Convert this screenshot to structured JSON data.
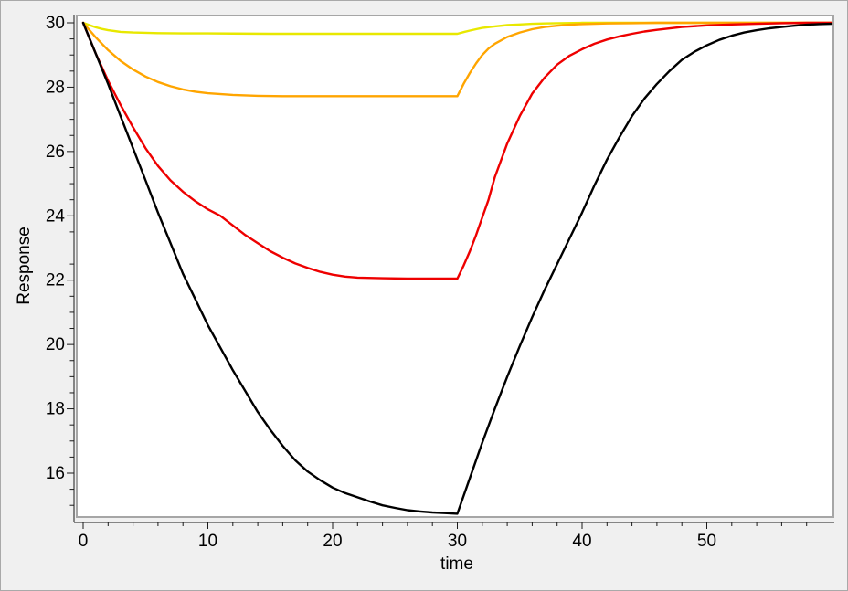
{
  "window": {
    "background_color": "#f0f0f0",
    "plot_background_color": "#ffffff",
    "frame_color": "#a6a6a6",
    "axis_color": "#1a1a1a",
    "text_color": "#000000"
  },
  "chart_data": {
    "type": "line",
    "title": "",
    "xlabel": "time",
    "ylabel": "Response",
    "xlim": [
      -0.5,
      60.2
    ],
    "ylim": [
      14.6,
      30.25
    ],
    "grid": false,
    "legend_position": "none",
    "x_major_ticks": [
      0,
      10,
      20,
      30,
      40,
      50
    ],
    "x_tick_labels": [
      "0",
      "10",
      "20",
      "30",
      "40",
      "50"
    ],
    "x_minor_step": 2,
    "y_major_ticks": [
      16,
      18,
      20,
      22,
      24,
      26,
      28,
      30
    ],
    "y_tick_labels": [
      "16",
      "18",
      "20",
      "22",
      "24",
      "26",
      "28",
      "30"
    ],
    "y_minor_step": 0.5,
    "baseline_value": 30,
    "inhibition_end_time": 30,
    "series": [
      {
        "name": "yellow",
        "color": "#e8e800",
        "plateau": 29.66,
        "points": [
          [
            0,
            30
          ],
          [
            0.5,
            29.93
          ],
          [
            1,
            29.86
          ],
          [
            1.5,
            29.81
          ],
          [
            2,
            29.77
          ],
          [
            3,
            29.72
          ],
          [
            4,
            29.7
          ],
          [
            5,
            29.69
          ],
          [
            6,
            29.68
          ],
          [
            8,
            29.67
          ],
          [
            10,
            29.67
          ],
          [
            15,
            29.66
          ],
          [
            20,
            29.66
          ],
          [
            25,
            29.66
          ],
          [
            30,
            29.66
          ],
          [
            30.5,
            29.71
          ],
          [
            31,
            29.76
          ],
          [
            31.5,
            29.8
          ],
          [
            32,
            29.84
          ],
          [
            33,
            29.89
          ],
          [
            34,
            29.93
          ],
          [
            35,
            29.95
          ],
          [
            36,
            29.97
          ],
          [
            37,
            29.98
          ],
          [
            38,
            29.99
          ],
          [
            40,
            30
          ],
          [
            45,
            30
          ],
          [
            50,
            30
          ],
          [
            55,
            30
          ],
          [
            60,
            30
          ]
        ]
      },
      {
        "name": "orange",
        "color": "#ffa500",
        "plateau": 27.72,
        "points": [
          [
            0,
            30
          ],
          [
            1,
            29.55
          ],
          [
            2,
            29.15
          ],
          [
            3,
            28.82
          ],
          [
            4,
            28.55
          ],
          [
            5,
            28.33
          ],
          [
            6,
            28.16
          ],
          [
            7,
            28.03
          ],
          [
            8,
            27.93
          ],
          [
            9,
            27.86
          ],
          [
            10,
            27.81
          ],
          [
            12,
            27.76
          ],
          [
            14,
            27.73
          ],
          [
            16,
            27.72
          ],
          [
            20,
            27.72
          ],
          [
            25,
            27.72
          ],
          [
            30,
            27.72
          ],
          [
            30.5,
            28.1
          ],
          [
            31,
            28.44
          ],
          [
            31.5,
            28.74
          ],
          [
            32,
            29.0
          ],
          [
            32.5,
            29.2
          ],
          [
            33,
            29.35
          ],
          [
            34,
            29.56
          ],
          [
            35,
            29.7
          ],
          [
            36,
            29.8
          ],
          [
            37,
            29.87
          ],
          [
            38,
            29.91
          ],
          [
            39,
            29.94
          ],
          [
            40,
            29.96
          ],
          [
            42,
            29.98
          ],
          [
            44,
            29.99
          ],
          [
            46,
            30
          ],
          [
            50,
            30
          ],
          [
            55,
            30
          ],
          [
            60,
            30
          ]
        ]
      },
      {
        "name": "red",
        "color": "#ee0000",
        "plateau": 22.05,
        "points": [
          [
            0,
            30
          ],
          [
            1,
            29.05
          ],
          [
            2,
            28.2
          ],
          [
            3,
            27.45
          ],
          [
            4,
            26.75
          ],
          [
            5,
            26.1
          ],
          [
            6,
            25.55
          ],
          [
            7,
            25.1
          ],
          [
            8,
            24.75
          ],
          [
            9,
            24.45
          ],
          [
            10,
            24.2
          ],
          [
            11,
            24.0
          ],
          [
            12,
            23.7
          ],
          [
            13,
            23.4
          ],
          [
            14,
            23.15
          ],
          [
            15,
            22.9
          ],
          [
            16,
            22.7
          ],
          [
            17,
            22.52
          ],
          [
            18,
            22.38
          ],
          [
            19,
            22.26
          ],
          [
            20,
            22.17
          ],
          [
            21,
            22.11
          ],
          [
            22,
            22.08
          ],
          [
            24,
            22.06
          ],
          [
            26,
            22.05
          ],
          [
            28,
            22.05
          ],
          [
            30,
            22.05
          ],
          [
            30.5,
            22.45
          ],
          [
            31,
            22.9
          ],
          [
            31.5,
            23.4
          ],
          [
            32,
            23.95
          ],
          [
            32.5,
            24.5
          ],
          [
            33,
            25.2
          ],
          [
            34,
            26.25
          ],
          [
            35,
            27.1
          ],
          [
            36,
            27.8
          ],
          [
            37,
            28.3
          ],
          [
            38,
            28.7
          ],
          [
            39,
            28.98
          ],
          [
            40,
            29.18
          ],
          [
            41,
            29.35
          ],
          [
            42,
            29.48
          ],
          [
            43,
            29.58
          ],
          [
            44,
            29.66
          ],
          [
            45,
            29.73
          ],
          [
            46,
            29.78
          ],
          [
            48,
            29.87
          ],
          [
            50,
            29.92
          ],
          [
            52,
            29.95
          ],
          [
            54,
            29.97
          ],
          [
            56,
            29.99
          ],
          [
            58,
            30
          ],
          [
            60,
            30
          ]
        ]
      },
      {
        "name": "black",
        "color": "#000000",
        "plateau": 14.74,
        "points": [
          [
            0,
            30
          ],
          [
            1,
            29.05
          ],
          [
            2,
            28.1
          ],
          [
            3,
            27.1
          ],
          [
            4,
            26.1
          ],
          [
            5,
            25.1
          ],
          [
            6,
            24.1
          ],
          [
            7,
            23.15
          ],
          [
            8,
            22.2
          ],
          [
            9,
            21.4
          ],
          [
            10,
            20.6
          ],
          [
            11,
            19.9
          ],
          [
            12,
            19.2
          ],
          [
            13,
            18.55
          ],
          [
            14,
            17.9
          ],
          [
            15,
            17.35
          ],
          [
            16,
            16.85
          ],
          [
            17,
            16.4
          ],
          [
            18,
            16.05
          ],
          [
            19,
            15.78
          ],
          [
            20,
            15.55
          ],
          [
            21,
            15.38
          ],
          [
            22,
            15.25
          ],
          [
            23,
            15.12
          ],
          [
            24,
            15.0
          ],
          [
            25,
            14.92
          ],
          [
            26,
            14.85
          ],
          [
            27,
            14.81
          ],
          [
            28,
            14.78
          ],
          [
            29,
            14.76
          ],
          [
            30,
            14.74
          ],
          [
            31,
            15.85
          ],
          [
            32,
            16.95
          ],
          [
            33,
            18.0
          ],
          [
            34,
            19.0
          ],
          [
            35,
            19.95
          ],
          [
            36,
            20.85
          ],
          [
            37,
            21.7
          ],
          [
            38,
            22.5
          ],
          [
            39,
            23.3
          ],
          [
            40,
            24.1
          ],
          [
            41,
            24.95
          ],
          [
            42,
            25.75
          ],
          [
            43,
            26.45
          ],
          [
            44,
            27.1
          ],
          [
            45,
            27.65
          ],
          [
            46,
            28.1
          ],
          [
            47,
            28.5
          ],
          [
            48,
            28.85
          ],
          [
            49,
            29.1
          ],
          [
            50,
            29.3
          ],
          [
            51,
            29.47
          ],
          [
            52,
            29.6
          ],
          [
            53,
            29.7
          ],
          [
            54,
            29.77
          ],
          [
            55,
            29.83
          ],
          [
            56,
            29.87
          ],
          [
            57,
            29.91
          ],
          [
            58,
            29.94
          ],
          [
            59,
            29.96
          ],
          [
            60,
            29.97
          ]
        ]
      }
    ]
  }
}
